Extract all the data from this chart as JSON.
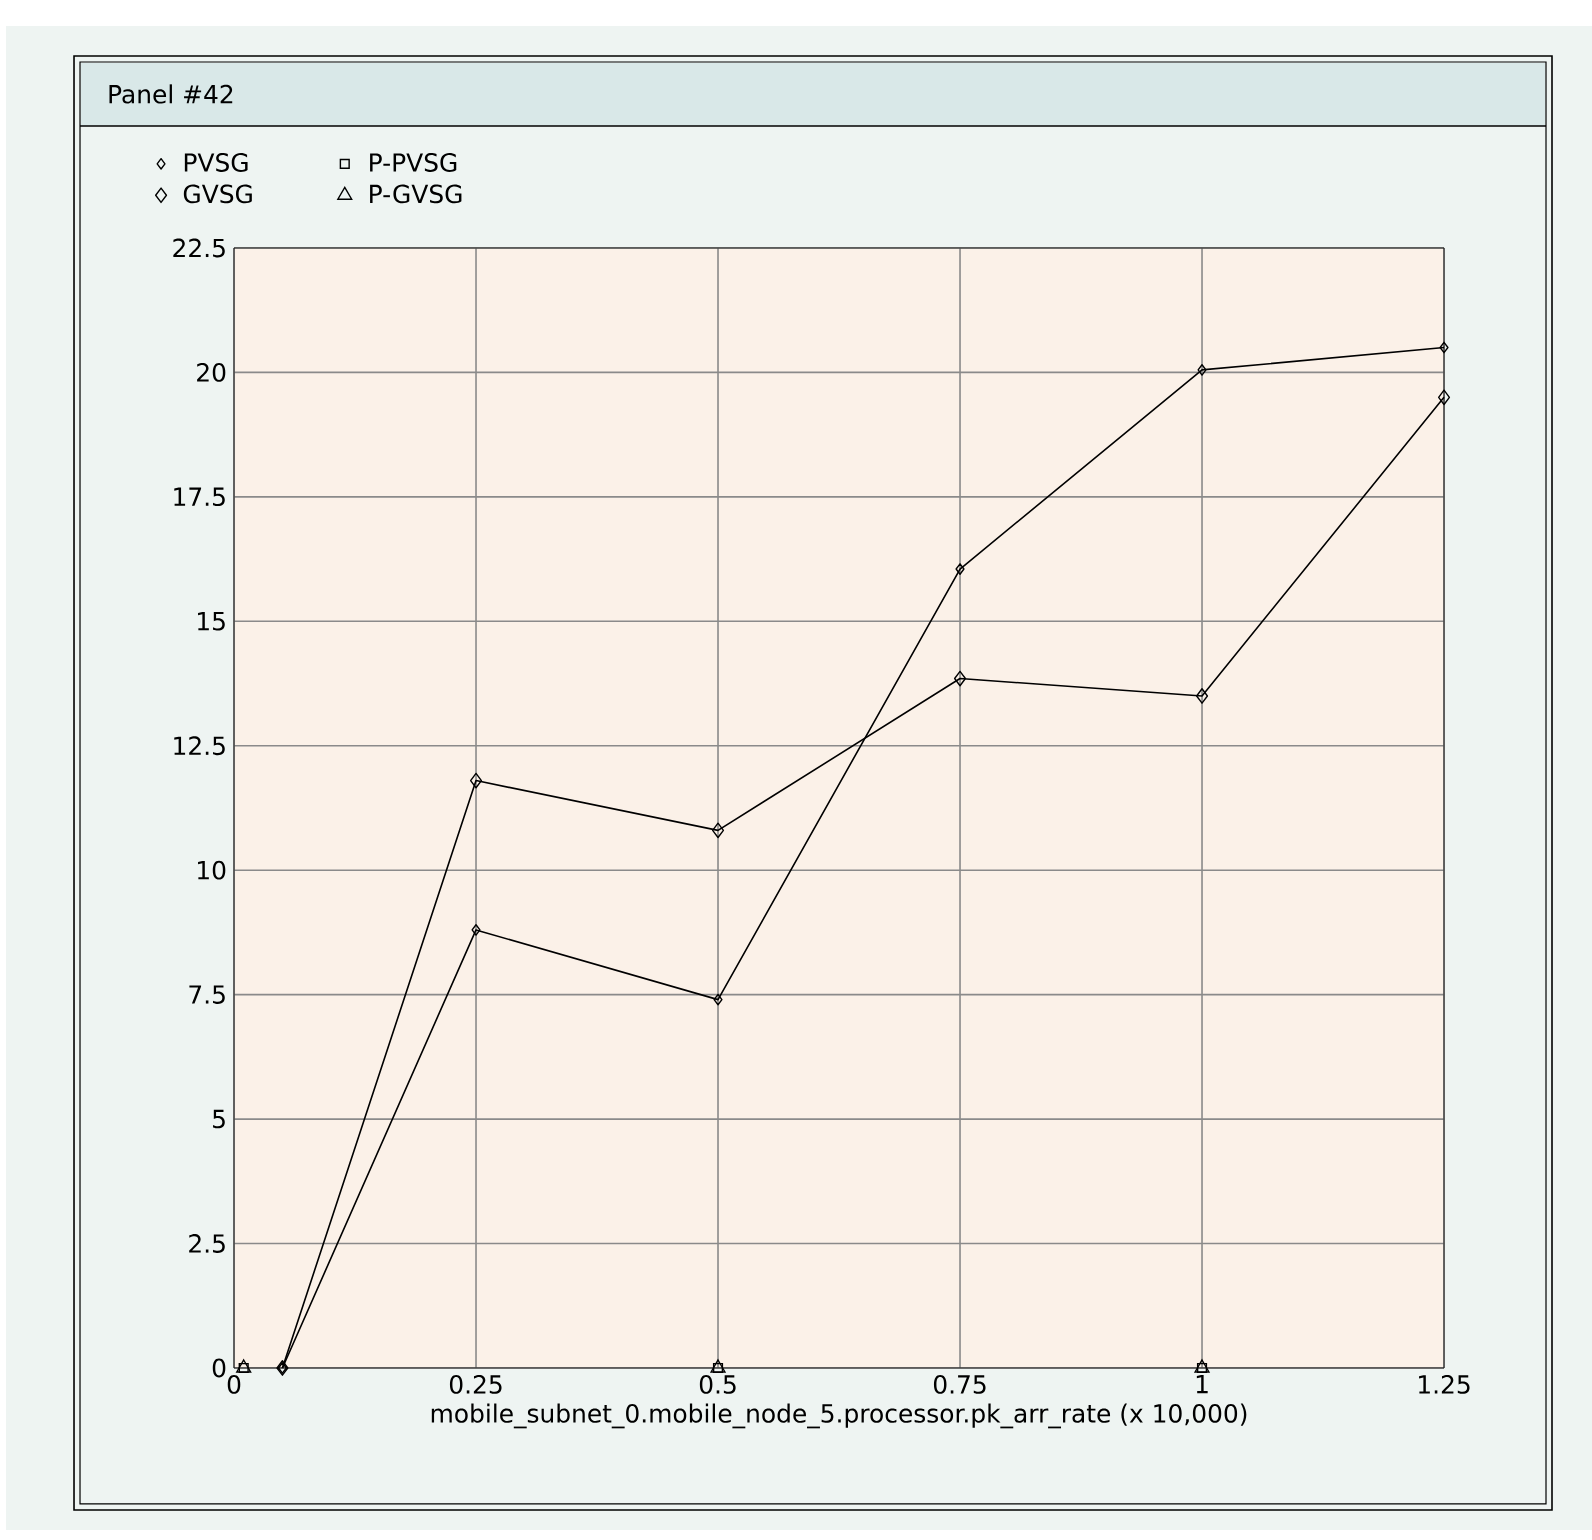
{
  "chart_data": {
    "type": "line",
    "title": "Panel #42",
    "xlabel": "mobile_subnet_0.mobile_node_5.processor.pk_arr_rate (x 10,000)",
    "xlim": [
      0,
      1.25
    ],
    "xticks": [
      0,
      0.25,
      0.5,
      0.75,
      1,
      1.25
    ],
    "ylim": [
      0,
      22.5
    ],
    "yticks": [
      0,
      2.5,
      5,
      7.5,
      10,
      12.5,
      15,
      17.5,
      20,
      22.5
    ],
    "grid": true,
    "legend": "top left",
    "line_style": "solid",
    "series": [
      {
        "name": "PVSG",
        "color": "#000000",
        "marker": "diamond",
        "x": [
          0.05,
          0.25,
          0.5,
          0.75,
          1,
          1.25
        ],
        "values": [
          0,
          8.8,
          7.4,
          16.05,
          20.05,
          20.5
        ]
      },
      {
        "name": "GVSG",
        "color": "#000000",
        "marker": "diamond",
        "x": [
          0.05,
          0.25,
          0.5,
          0.75,
          1,
          1.25
        ],
        "values": [
          0,
          11.8,
          10.8,
          13.85,
          13.5,
          19.5
        ]
      },
      {
        "name": "P-PVSG",
        "type": "scatter",
        "color": "#000000",
        "marker": "square",
        "x": [
          0.01,
          0.5,
          1
        ],
        "values": [
          0,
          0,
          0
        ]
      },
      {
        "name": "P-GVSG",
        "type": "scatter",
        "color": "#000000",
        "marker": "triangle",
        "x": [
          0.01,
          0.5,
          1
        ],
        "values": [
          0,
          0,
          0
        ]
      }
    ]
  }
}
